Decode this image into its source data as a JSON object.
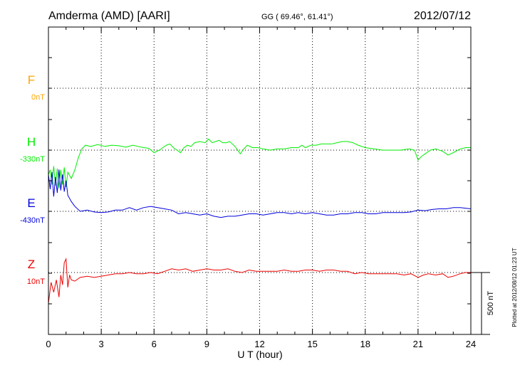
{
  "header": {
    "station": "Amderma (AMD)  [AARI]",
    "coords": "GG ( 69.46°,  61.41°)",
    "date": "2012/07/12"
  },
  "footer": {
    "plotted": "Plotted at 2012/08/12 01:23 UT",
    "scale_label": "500 nT"
  },
  "colors": {
    "F": "#ffa500",
    "H": "#00ee00",
    "E": "#0000dd",
    "Z": "#ee0000",
    "grid": "#000000"
  },
  "chart_data": {
    "type": "line",
    "xlabel": "U T (hour)",
    "xlim": [
      0,
      24
    ],
    "xticks": [
      "0",
      "3",
      "6",
      "9",
      "12",
      "15",
      "18",
      "21",
      "24"
    ],
    "grid": "dotted",
    "scale_bar_nT": 500,
    "series": [
      {
        "name": "F",
        "baseline_label": "0nT",
        "color": "#ffa500",
        "points": []
      },
      {
        "name": "H",
        "baseline_label": "-330nT",
        "color": "#00ee00",
        "points": [
          [
            0,
            -200
          ],
          [
            0.1,
            -160
          ],
          [
            0.2,
            -280
          ],
          [
            0.3,
            -130
          ],
          [
            0.4,
            -290
          ],
          [
            0.5,
            -150
          ],
          [
            0.6,
            -310
          ],
          [
            0.7,
            -160
          ],
          [
            0.8,
            -280
          ],
          [
            0.9,
            -140
          ],
          [
            1.0,
            -300
          ],
          [
            1.1,
            -180
          ],
          [
            1.3,
            -230
          ],
          [
            1.5,
            -160
          ],
          [
            1.7,
            -60
          ],
          [
            1.9,
            10
          ],
          [
            2.1,
            40
          ],
          [
            2.4,
            30
          ],
          [
            2.8,
            45
          ],
          [
            3.2,
            30
          ],
          [
            3.6,
            40
          ],
          [
            4.0,
            35
          ],
          [
            4.4,
            25
          ],
          [
            4.8,
            40
          ],
          [
            5.1,
            30
          ],
          [
            5.4,
            20
          ],
          [
            5.7,
            15
          ],
          [
            6.0,
            -20
          ],
          [
            6.3,
            0
          ],
          [
            6.5,
            20
          ],
          [
            6.7,
            40
          ],
          [
            6.9,
            50
          ],
          [
            7.1,
            20
          ],
          [
            7.3,
            0
          ],
          [
            7.5,
            -20
          ],
          [
            7.7,
            20
          ],
          [
            7.9,
            40
          ],
          [
            8.1,
            30
          ],
          [
            8.3,
            60
          ],
          [
            8.6,
            70
          ],
          [
            8.9,
            60
          ],
          [
            9.1,
            90
          ],
          [
            9.3,
            60
          ],
          [
            9.5,
            70
          ],
          [
            9.7,
            80
          ],
          [
            9.9,
            60
          ],
          [
            10.1,
            60
          ],
          [
            10.3,
            70
          ],
          [
            10.6,
            30
          ],
          [
            10.9,
            -30
          ],
          [
            11.1,
            10
          ],
          [
            11.3,
            40
          ],
          [
            11.6,
            20
          ],
          [
            11.9,
            20
          ],
          [
            12.2,
            10
          ],
          [
            12.6,
            0
          ],
          [
            13.0,
            10
          ],
          [
            13.4,
            10
          ],
          [
            13.8,
            20
          ],
          [
            14.2,
            20
          ],
          [
            14.4,
            40
          ],
          [
            14.6,
            20
          ],
          [
            14.9,
            40
          ],
          [
            15.2,
            40
          ],
          [
            15.5,
            50
          ],
          [
            15.8,
            50
          ],
          [
            16.1,
            50
          ],
          [
            16.4,
            60
          ],
          [
            16.7,
            70
          ],
          [
            17.0,
            70
          ],
          [
            17.3,
            60
          ],
          [
            17.6,
            40
          ],
          [
            18.0,
            20
          ],
          [
            18.5,
            10
          ],
          [
            19.0,
            0
          ],
          [
            19.5,
            0
          ],
          [
            20.0,
            0
          ],
          [
            20.5,
            10
          ],
          [
            20.8,
            0
          ],
          [
            21.0,
            -80
          ],
          [
            21.2,
            -50
          ],
          [
            21.4,
            -30
          ],
          [
            21.7,
            0
          ],
          [
            22.0,
            10
          ],
          [
            22.4,
            -10
          ],
          [
            22.7,
            -40
          ],
          [
            23.0,
            -20
          ],
          [
            23.4,
            10
          ],
          [
            23.7,
            20
          ],
          [
            24.0,
            20
          ]
        ]
      },
      {
        "name": "E",
        "baseline_label": "-430nT",
        "color": "#0000dd",
        "points": [
          [
            0,
            300
          ],
          [
            0.1,
            180
          ],
          [
            0.2,
            320
          ],
          [
            0.3,
            120
          ],
          [
            0.4,
            280
          ],
          [
            0.5,
            150
          ],
          [
            0.6,
            340
          ],
          [
            0.7,
            170
          ],
          [
            0.8,
            300
          ],
          [
            0.9,
            160
          ],
          [
            1.0,
            250
          ],
          [
            1.1,
            130
          ],
          [
            1.3,
            80
          ],
          [
            1.5,
            40
          ],
          [
            1.8,
            0
          ],
          [
            2.2,
            10
          ],
          [
            2.6,
            -5
          ],
          [
            3.0,
            -10
          ],
          [
            3.4,
            -5
          ],
          [
            3.8,
            10
          ],
          [
            4.2,
            10
          ],
          [
            4.6,
            30
          ],
          [
            5.0,
            10
          ],
          [
            5.4,
            30
          ],
          [
            5.8,
            40
          ],
          [
            6.2,
            30
          ],
          [
            6.6,
            20
          ],
          [
            7.0,
            10
          ],
          [
            7.4,
            -20
          ],
          [
            7.8,
            -10
          ],
          [
            8.2,
            -20
          ],
          [
            8.6,
            -30
          ],
          [
            9.0,
            -20
          ],
          [
            9.4,
            -40
          ],
          [
            9.8,
            -50
          ],
          [
            10.2,
            -40
          ],
          [
            10.6,
            -40
          ],
          [
            11.0,
            -30
          ],
          [
            11.4,
            -20
          ],
          [
            11.8,
            -20
          ],
          [
            12.2,
            -30
          ],
          [
            12.6,
            -20
          ],
          [
            13.0,
            -10
          ],
          [
            13.4,
            -10
          ],
          [
            13.8,
            -20
          ],
          [
            14.2,
            -10
          ],
          [
            14.6,
            -20
          ],
          [
            15.0,
            -10
          ],
          [
            15.4,
            -20
          ],
          [
            15.8,
            -30
          ],
          [
            16.2,
            -30
          ],
          [
            16.6,
            -20
          ],
          [
            17.0,
            -20
          ],
          [
            17.4,
            -10
          ],
          [
            17.8,
            -10
          ],
          [
            18.2,
            -20
          ],
          [
            18.6,
            -20
          ],
          [
            19.0,
            -10
          ],
          [
            19.4,
            -10
          ],
          [
            19.8,
            -10
          ],
          [
            20.2,
            -10
          ],
          [
            20.6,
            -5
          ],
          [
            21.0,
            10
          ],
          [
            21.4,
            5
          ],
          [
            21.8,
            15
          ],
          [
            22.2,
            20
          ],
          [
            22.6,
            20
          ],
          [
            23.0,
            30
          ],
          [
            23.4,
            30
          ],
          [
            24.0,
            20
          ]
        ]
      },
      {
        "name": "Z",
        "baseline_label": "10nT",
        "color": "#ee0000",
        "points": [
          [
            0,
            -250
          ],
          [
            0.15,
            -80
          ],
          [
            0.3,
            -160
          ],
          [
            0.45,
            -60
          ],
          [
            0.6,
            -200
          ],
          [
            0.7,
            -20
          ],
          [
            0.8,
            -100
          ],
          [
            0.9,
            80
          ],
          [
            1.0,
            110
          ],
          [
            1.1,
            -120
          ],
          [
            1.2,
            -20
          ],
          [
            1.3,
            -60
          ],
          [
            1.5,
            -70
          ],
          [
            1.8,
            -40
          ],
          [
            2.2,
            -30
          ],
          [
            2.6,
            -40
          ],
          [
            3.0,
            -30
          ],
          [
            3.4,
            -20
          ],
          [
            3.8,
            -10
          ],
          [
            4.2,
            -10
          ],
          [
            4.6,
            0
          ],
          [
            5.0,
            -10
          ],
          [
            5.4,
            -10
          ],
          [
            5.8,
            0
          ],
          [
            6.2,
            -10
          ],
          [
            6.6,
            10
          ],
          [
            7.0,
            30
          ],
          [
            7.4,
            20
          ],
          [
            7.8,
            30
          ],
          [
            8.2,
            10
          ],
          [
            8.6,
            20
          ],
          [
            9.0,
            30
          ],
          [
            9.4,
            20
          ],
          [
            9.8,
            20
          ],
          [
            10.2,
            30
          ],
          [
            10.6,
            10
          ],
          [
            11.0,
            0
          ],
          [
            11.4,
            20
          ],
          [
            11.8,
            10
          ],
          [
            12.2,
            10
          ],
          [
            12.6,
            10
          ],
          [
            13.0,
            10
          ],
          [
            13.4,
            20
          ],
          [
            13.8,
            10
          ],
          [
            14.2,
            10
          ],
          [
            14.6,
            20
          ],
          [
            15.0,
            20
          ],
          [
            15.4,
            10
          ],
          [
            15.8,
            20
          ],
          [
            16.2,
            20
          ],
          [
            16.6,
            10
          ],
          [
            17.0,
            10
          ],
          [
            17.4,
            -10
          ],
          [
            17.8,
            0
          ],
          [
            18.2,
            -10
          ],
          [
            18.6,
            -10
          ],
          [
            19.0,
            -10
          ],
          [
            19.4,
            -10
          ],
          [
            19.8,
            -10
          ],
          [
            20.2,
            -20
          ],
          [
            20.6,
            -10
          ],
          [
            21.0,
            -40
          ],
          [
            21.3,
            -20
          ],
          [
            21.6,
            -10
          ],
          [
            22.0,
            -20
          ],
          [
            22.4,
            -10
          ],
          [
            22.7,
            -40
          ],
          [
            23.0,
            -30
          ],
          [
            23.4,
            -10
          ],
          [
            23.7,
            0
          ],
          [
            24.0,
            0
          ]
        ]
      }
    ]
  }
}
